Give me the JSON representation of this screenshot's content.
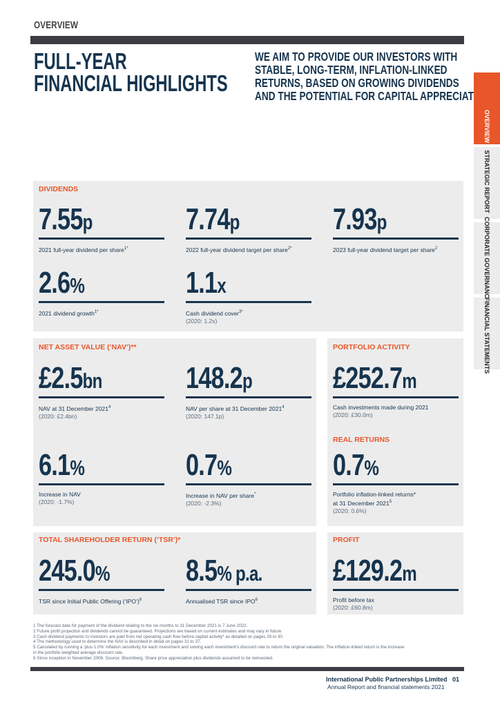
{
  "header": {
    "section": "OVERVIEW"
  },
  "title": {
    "line1": "FULL-YEAR",
    "line2": "FINANCIAL HIGHLIGHTS"
  },
  "subtitle": {
    "line1": "WE AIM TO PROVIDE OUR INVESTORS WITH",
    "line2": "STABLE, LONG-TERM, INFLATION-LINKED",
    "line3": "RETURNS, BASED ON GROWING DIVIDENDS",
    "line4": "AND THE POTENTIAL FOR CAPITAL APPRECIATION"
  },
  "side_tabs": [
    "OVERVIEW",
    "STRATEGIC REPORT",
    "CORPORATE GOVERNANCE",
    "FINANCIAL STATEMENTS"
  ],
  "dividends": {
    "heading": "DIVIDENDS",
    "m1": {
      "value": "7.55",
      "unit": "p",
      "label": "2021 full-year dividend per share",
      "sup": "1*"
    },
    "m2": {
      "value": "7.74",
      "unit": "p",
      "label": "2022 full-year dividend target per share",
      "sup": "2*"
    },
    "m3": {
      "value": "7.93",
      "unit": "p",
      "label": "2023 full-year dividend target per share",
      "sup": "2"
    },
    "m4": {
      "value": "2.6",
      "unit": "%",
      "label": "2021 dividend growth",
      "sup": "1*"
    },
    "m5": {
      "value": "1.1",
      "unit": "x",
      "label": "Cash dividend cover",
      "sup": "3*",
      "prior": "(2020: 1.2x)"
    }
  },
  "nav": {
    "heading": "NET ASSET VALUE (‘NAV’)**",
    "m1": {
      "value": "£2.5",
      "unit": "bn",
      "label": "NAV at 31 December 2021",
      "sup": "4",
      "prior": "(2020: £2.4bn)"
    },
    "m2": {
      "value": "148.2",
      "unit": "p",
      "label": "NAV per share at 31 December 2021",
      "sup": "4",
      "prior": "(2020: 147.1p)"
    },
    "m3": {
      "value": "6.1",
      "unit": "%",
      "label": "Increase in NAV",
      "prior": "(2020: -1.7%)"
    },
    "m4": {
      "value": "0.7",
      "unit": "%",
      "label": "Increase in NAV per share",
      "sup": "*",
      "prior": "(2020: -2.3%)"
    }
  },
  "portfolio": {
    "heading": "PORTFOLIO ACTIVITY",
    "m1": {
      "value": "£252.7",
      "unit": "m",
      "label": "Cash investments made during 2021",
      "prior": "(2020: £30.0m)"
    }
  },
  "real_returns": {
    "heading": "REAL RETURNS",
    "m1": {
      "value": "0.7",
      "unit": "%",
      "label": "Portfolio inflation-linked returns*",
      "label2": "at 31 December 2021",
      "sup": "5",
      "prior": "(2020: 0.6%)"
    }
  },
  "tsr": {
    "heading": "TOTAL SHAREHOLDER RETURN (‘TSR’)*",
    "m1": {
      "value": "245.0",
      "unit": "%",
      "label": "TSR since Initial Public Offering (‘IPO’)",
      "sup": "6"
    },
    "m2": {
      "value": "8.5",
      "unit": "% p.a.",
      "label": "Annualised TSR since IPO",
      "sup": "6"
    }
  },
  "profit": {
    "heading": "PROFIT",
    "m1": {
      "value": "£129.2",
      "unit": "m",
      "label": "Profit before tax",
      "prior": "(2020: £60.8m)"
    }
  },
  "footnotes": [
    "1   The forecast date for payment of the dividend relating to the six months to 31 December 2021 is 7 June 2022.",
    "2   Future profit projection and dividends cannot be guaranteed. Projections are based on current estimates and may vary in future.",
    "3   Cash dividend payments to investors are paid from net operating cash flow before capital activity* as detailed on pages 29 to 30.",
    "4   The methodology used to determine the NAV is described in detail on pages 31 to 37.",
    "5   Calculated by running a ‘plus 1.0%’ inflation sensitivity for each investment and solving each investment’s discount rate to return the original valuation. The inflation-linked return is the increase",
    "     in the portfolio weighted average discount rate.",
    "6   Since inception in November 2006. Source: Bloomberg. Share price appreciation plus dividends assumed to be reinvested."
  ],
  "footer": {
    "company": "International Public Partnerships Limited",
    "page": "01",
    "report": "Annual Report and financial statements 2021"
  },
  "colors": {
    "accent": "#e8562a",
    "navy": "#16344e",
    "panel": "#ececec",
    "bar": "#3c3c44"
  }
}
